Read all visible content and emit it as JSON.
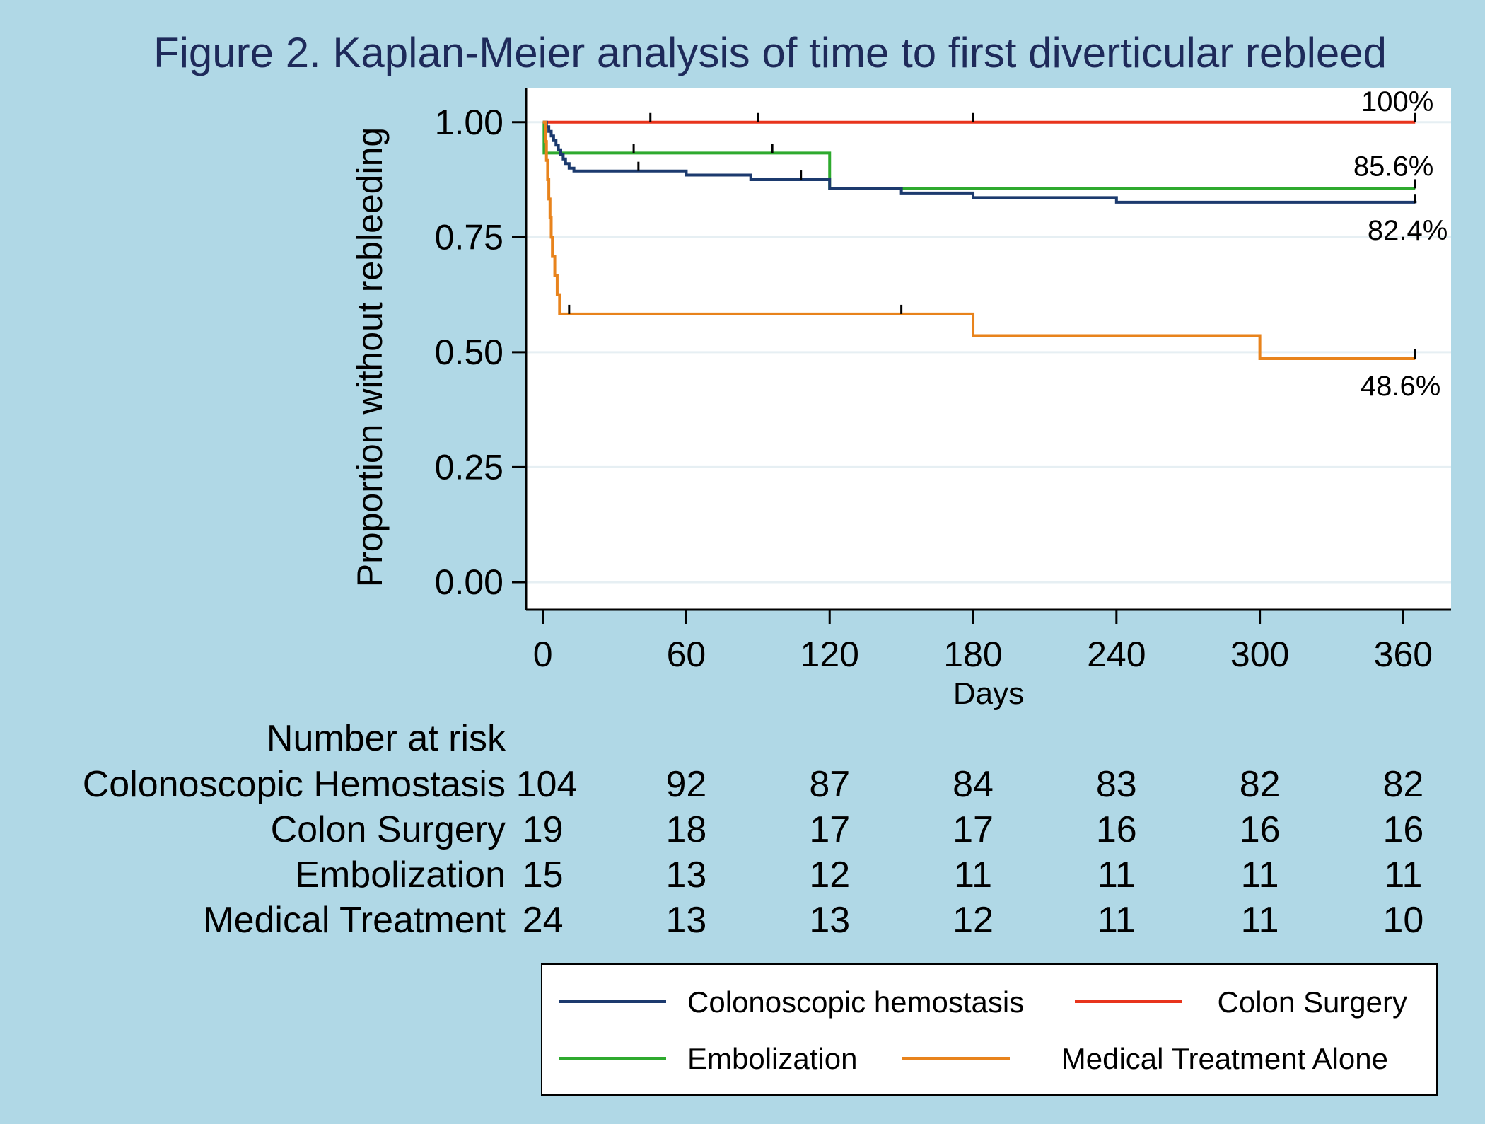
{
  "chart_data": {
    "type": "line",
    "title": "Figure 2. Kaplan-Meier analysis of time to first diverticular rebleed",
    "xlabel": "Days",
    "ylabel": "Proportion without rebleeding",
    "xlim": [
      -7,
      380
    ],
    "ylim": [
      -0.06,
      1.075
    ],
    "xticks": [
      0,
      60,
      120,
      180,
      240,
      300,
      360
    ],
    "xtick_labels": [
      "0",
      "60",
      "120",
      "180",
      "240",
      "300",
      "360"
    ],
    "yticks": [
      0,
      0.25,
      0.5,
      0.75,
      1.0
    ],
    "ytick_labels": [
      "0.00",
      "0.25",
      "0.50",
      "0.75",
      "1.00"
    ],
    "series": [
      {
        "name": "Colon Surgery",
        "color": "#e8341c",
        "steps": [
          [
            0,
            1.0
          ],
          [
            365,
            1.0
          ]
        ],
        "censor_ticks": [
          45,
          90,
          180,
          365
        ],
        "end_label": "100%"
      },
      {
        "name": "Embolization",
        "color": "#2eaa2e",
        "steps": [
          [
            0,
            1.0
          ],
          [
            0.5,
            0.933
          ],
          [
            120,
            0.856
          ],
          [
            365,
            0.856
          ]
        ],
        "censor_ticks": [
          38,
          96,
          365
        ],
        "end_label": "85.6%"
      },
      {
        "name": "Colonoscopic hemostasis",
        "color": "#1c3a6e",
        "steps": [
          [
            0,
            1.0
          ],
          [
            1.5,
            0.99
          ],
          [
            2.5,
            0.98
          ],
          [
            3.5,
            0.97
          ],
          [
            4.5,
            0.96
          ],
          [
            5.5,
            0.95
          ],
          [
            6.5,
            0.94
          ],
          [
            7.5,
            0.93
          ],
          [
            8.5,
            0.92
          ],
          [
            9.5,
            0.91
          ],
          [
            11,
            0.9
          ],
          [
            13,
            0.894
          ],
          [
            60,
            0.885
          ],
          [
            87,
            0.875
          ],
          [
            120,
            0.856
          ],
          [
            150,
            0.846
          ],
          [
            180,
            0.836
          ],
          [
            240,
            0.826
          ],
          [
            365,
            0.824
          ]
        ],
        "censor_ticks": [
          40,
          108,
          365
        ],
        "end_label": "82.4%"
      },
      {
        "name": "Medical Treatment Alone",
        "color": "#e8831c",
        "steps": [
          [
            0,
            1.0
          ],
          [
            1,
            0.958
          ],
          [
            1.5,
            0.917
          ],
          [
            2,
            0.875
          ],
          [
            2.5,
            0.833
          ],
          [
            3,
            0.792
          ],
          [
            3.5,
            0.75
          ],
          [
            4,
            0.708
          ],
          [
            5,
            0.667
          ],
          [
            6,
            0.625
          ],
          [
            7,
            0.583
          ],
          [
            180,
            0.536
          ],
          [
            300,
            0.486
          ],
          [
            365,
            0.486
          ]
        ],
        "censor_ticks": [
          11,
          150,
          365
        ],
        "end_label": "48.6%"
      }
    ]
  },
  "risk_table": {
    "header": "Number at risk",
    "rows": [
      {
        "label": "Colonoscopic Hemostasis",
        "values": [
          "104",
          "92",
          "87",
          "84",
          "83",
          "82",
          "82"
        ]
      },
      {
        "label": "Colon Surgery",
        "values": [
          "19",
          "18",
          "17",
          "17",
          "16",
          "16",
          "16"
        ]
      },
      {
        "label": "Embolization",
        "values": [
          "15",
          "13",
          "12",
          "11",
          "11",
          "11",
          "11"
        ]
      },
      {
        "label": "Medical Treatment",
        "values": [
          "24",
          "13",
          "13",
          "12",
          "11",
          "11",
          "10"
        ]
      }
    ]
  },
  "legend": {
    "items": [
      {
        "label": "Colonoscopic hemostasis",
        "color": "#1c3a6e"
      },
      {
        "label": "Colon Surgery",
        "color": "#e8341c"
      },
      {
        "label": "Embolization",
        "color": "#2eaa2e"
      },
      {
        "label": "Medical Treatment Alone",
        "color": "#e8831c"
      }
    ]
  }
}
